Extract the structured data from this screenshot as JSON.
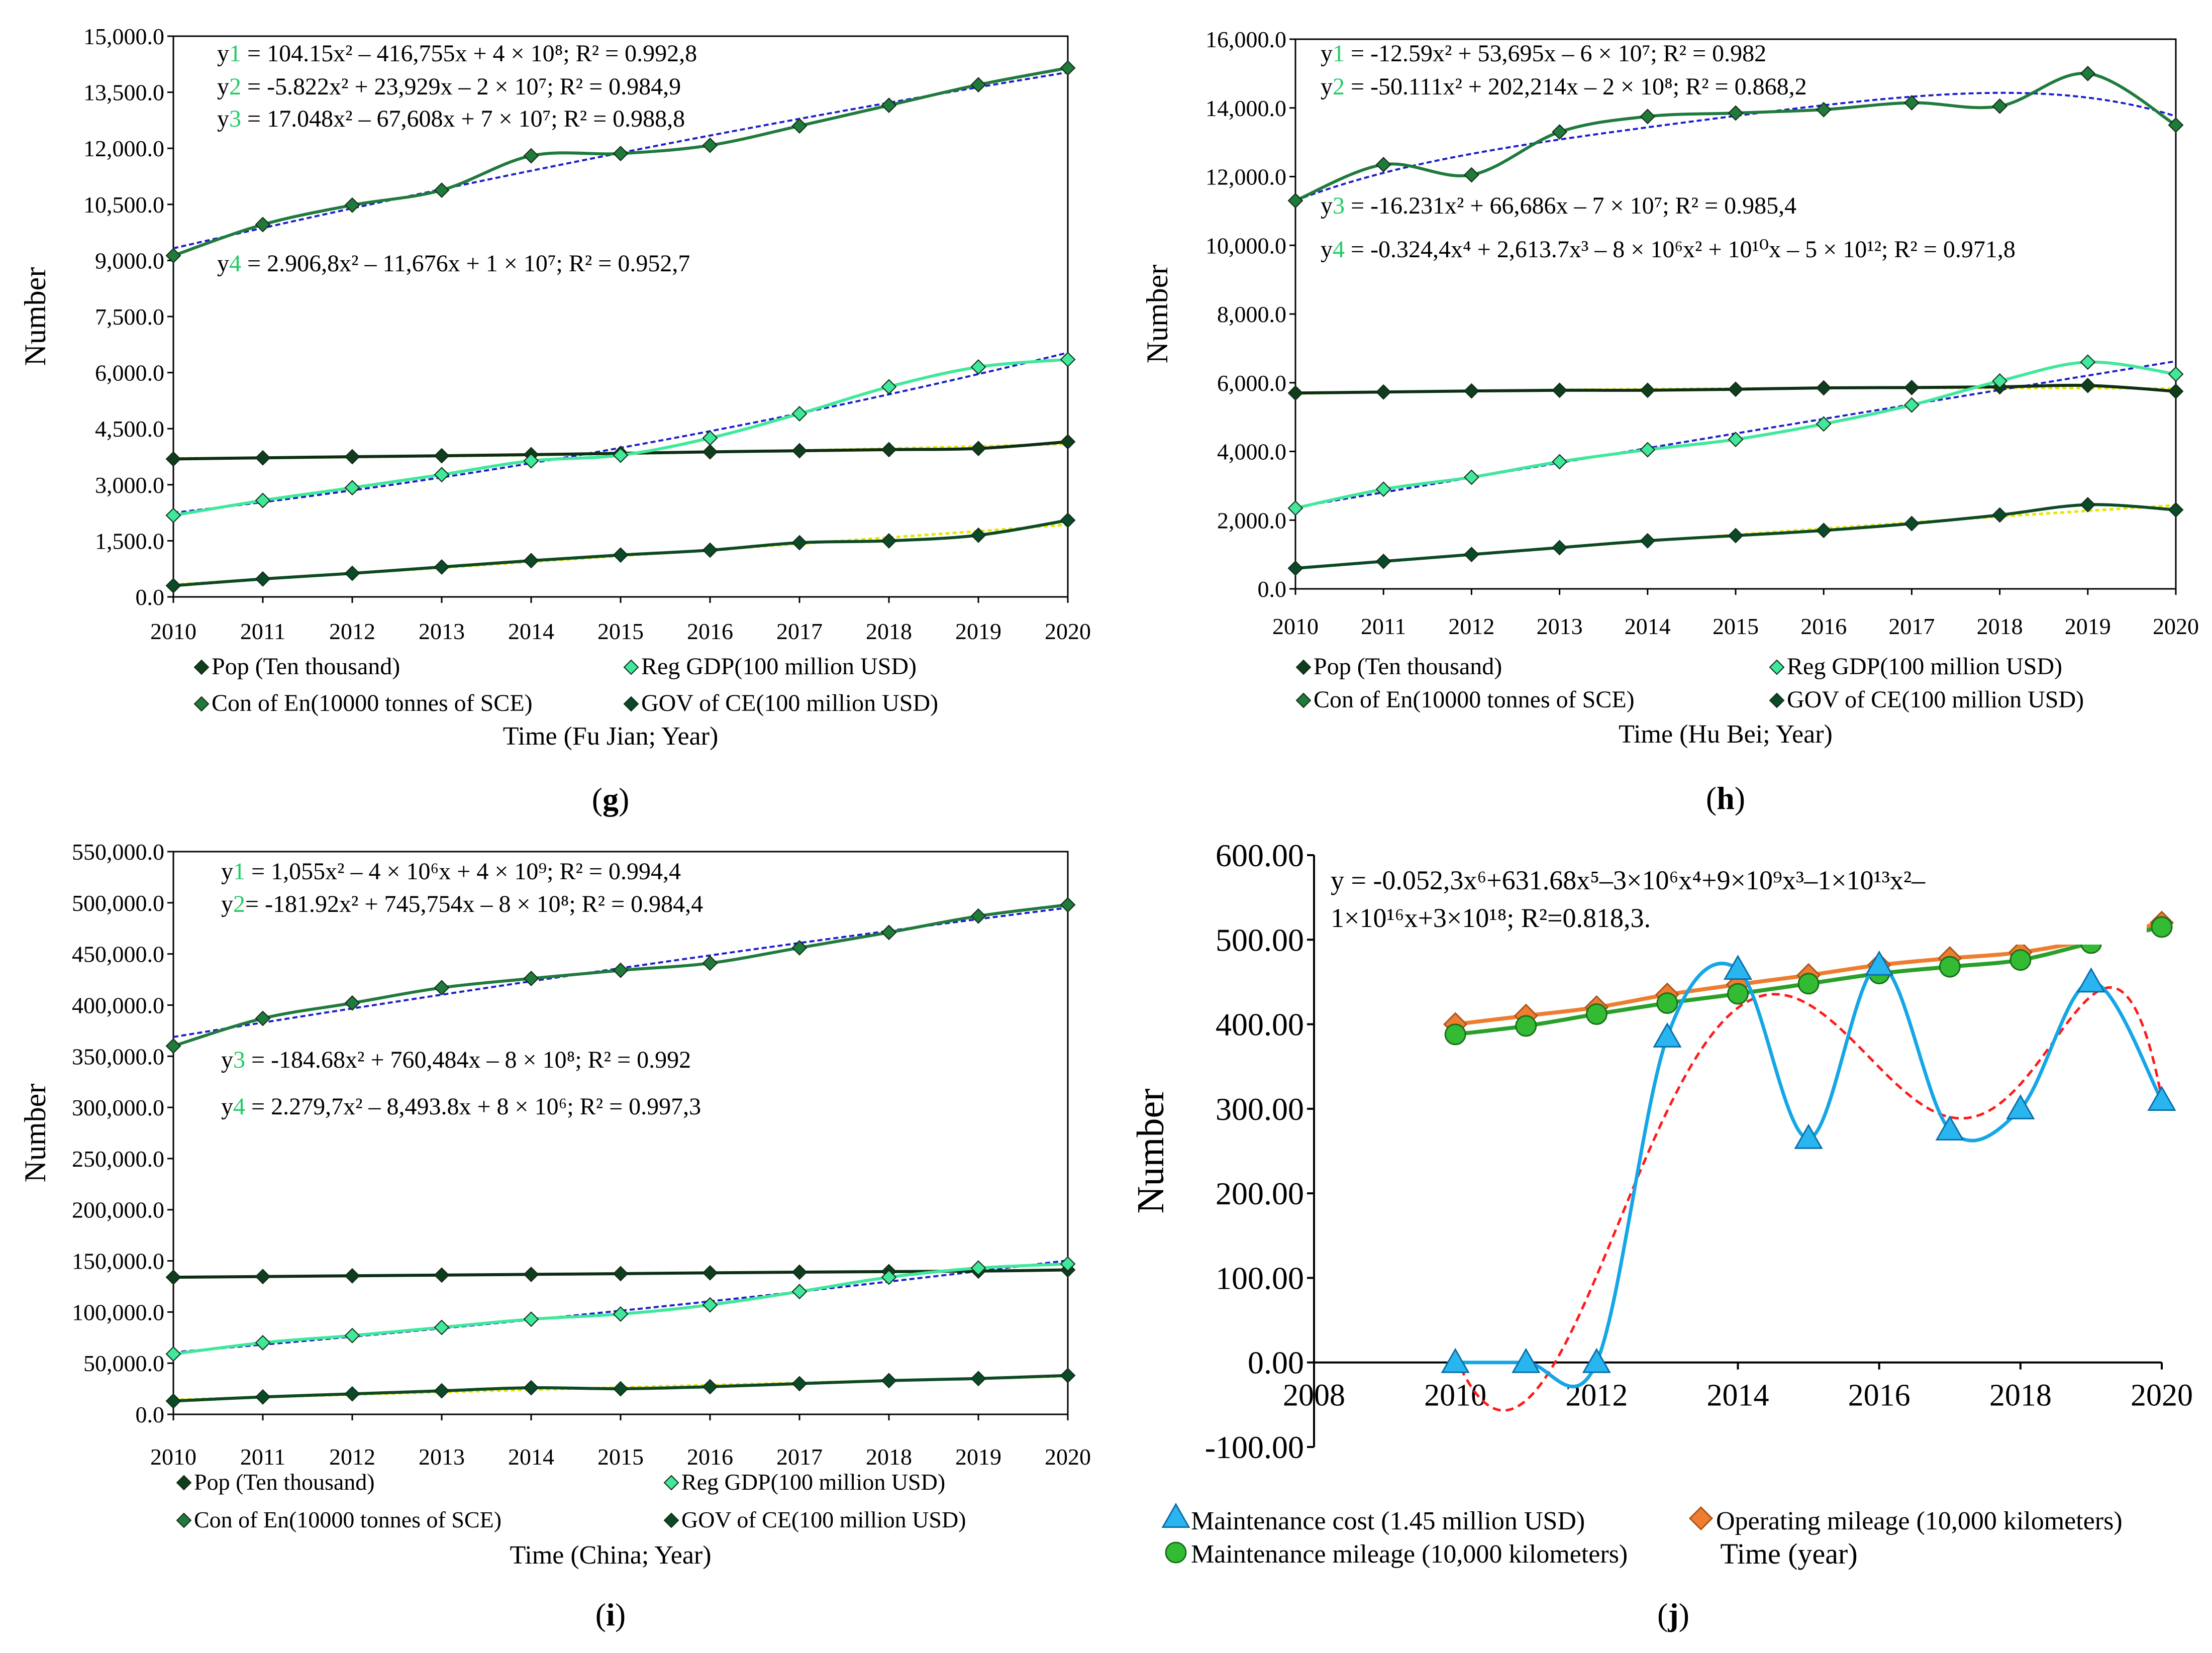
{
  "colors": {
    "pop": "#0f3d1e",
    "gdp": "#3fe89a",
    "en": "#1f7a3c",
    "gov": "#0b4a28",
    "fit_blue": "#1c1ccc",
    "fit_yellow": "#e6e600",
    "fit_red": "#ff1a1a",
    "cost": "#14a6e6",
    "mileage_op": "#ee7d30",
    "mileage_maint": "#2aa02a"
  },
  "chart_data": [
    {
      "id": "g",
      "type": "line",
      "panel_label": "g",
      "ylabel": "Number",
      "xlabel": "Time (Fu Jian; Year)",
      "ylim": [
        0,
        15000
      ],
      "yticks": [
        "0.0",
        "1,500.0",
        "3,000.0",
        "4,500.0",
        "6,000.0",
        "7,500.0",
        "9,000.0",
        "10,500.0",
        "12,000.0",
        "13,500.0",
        "15,000.0"
      ],
      "x": [
        "2010",
        "2011",
        "2012",
        "2013",
        "2014",
        "2015",
        "2016",
        "2017",
        "2018",
        "2019",
        "2020"
      ],
      "series": [
        {
          "key": "pop",
          "name": "Pop (Ten thousand)",
          "values": [
            3690,
            3720,
            3750,
            3775,
            3805,
            3840,
            3880,
            3910,
            3940,
            3970,
            4150
          ]
        },
        {
          "key": "gdp",
          "name": "Reg GDP(100 million USD)",
          "values": [
            2180,
            2580,
            2920,
            3270,
            3640,
            3790,
            4250,
            4900,
            5620,
            6150,
            6350
          ]
        },
        {
          "key": "en",
          "name": "Con of En(10000 tonnes of SCE)",
          "values": [
            9130,
            9960,
            10480,
            10880,
            11800,
            11860,
            12080,
            12600,
            13150,
            13700,
            14150
          ]
        },
        {
          "key": "gov",
          "name": "GOV of CE(100 million USD)",
          "values": [
            300,
            480,
            630,
            800,
            970,
            1120,
            1250,
            1450,
            1500,
            1650,
            2050
          ]
        }
      ],
      "equations": [
        {
          "prefix": "y",
          "idx": "1",
          "body": " = 104.15x² – 416,755x + 4 × 10⁸; R² = 0.992,8"
        },
        {
          "prefix": "y",
          "idx": "2",
          "body": " = -5.822x² + 23,929x – 2 × 10⁷; R² = 0.984,9"
        },
        {
          "prefix": "y",
          "idx": "3",
          "body": " = 17.048x² – 67,608x + 7 × 10⁷; R² = 0.988,8"
        },
        {
          "prefix": "y",
          "idx": "4",
          "body": " = 2.906,8x² – 11,676x + 1 × 10⁷; R² = 0.952,7"
        }
      ]
    },
    {
      "id": "h",
      "type": "line",
      "panel_label": "h",
      "ylabel": "Number",
      "xlabel": "Time (Hu Bei; Year)",
      "ylim": [
        0,
        16000
      ],
      "yticks": [
        "0.0",
        "2,000.0",
        "4,000.0",
        "6,000.0",
        "8,000.0",
        "10,000.0",
        "12,000.0",
        "14,000.0",
        "16,000.0"
      ],
      "x": [
        "2010",
        "2011",
        "2012",
        "2013",
        "2014",
        "2015",
        "2016",
        "2017",
        "2018",
        "2019",
        "2020"
      ],
      "series": [
        {
          "key": "pop",
          "name": "Pop (Ten thousand)",
          "values": [
            5700,
            5730,
            5760,
            5780,
            5780,
            5810,
            5850,
            5860,
            5880,
            5920,
            5750
          ]
        },
        {
          "key": "gdp",
          "name": "Reg GDP(100 million USD)",
          "values": [
            2350,
            2900,
            3250,
            3700,
            4050,
            4350,
            4800,
            5350,
            6050,
            6600,
            6250
          ]
        },
        {
          "key": "en",
          "name": "Con of En(10000 tonnes of SCE)",
          "values": [
            11300,
            12350,
            12050,
            13300,
            13750,
            13850,
            13950,
            14150,
            14050,
            15000,
            13500
          ]
        },
        {
          "key": "gov",
          "name": "GOV of CE(100 million USD)",
          "values": [
            600,
            800,
            1000,
            1200,
            1400,
            1550,
            1700,
            1900,
            2150,
            2450,
            2300
          ]
        }
      ],
      "equations": [
        {
          "prefix": "y",
          "idx": "1",
          "body": " = -12.59x² + 53,695x – 6 × 10⁷; R² = 0.982"
        },
        {
          "prefix": "y",
          "idx": "2",
          "body": " = -50.111x² + 202,214x – 2 × 10⁸; R² = 0.868,2"
        },
        {
          "prefix": "y",
          "idx": "3",
          "body": " = -16.231x² + 66,686x – 7 × 10⁷; R² = 0.985,4"
        },
        {
          "prefix": "y",
          "idx": "4",
          "body": " = -0.324,4x⁴ + 2,613.7x³ – 8 × 10⁶x² + 10¹⁰x – 5 × 10¹²; R² = 0.971,8"
        }
      ]
    },
    {
      "id": "i",
      "type": "line",
      "panel_label": "i",
      "ylabel": "Number",
      "xlabel": "Time (China; Year)",
      "ylim": [
        0,
        550000
      ],
      "yticks": [
        "0.0",
        "50,000.0",
        "100,000.0",
        "150,000.0",
        "200,000.0",
        "250,000.0",
        "300,000.0",
        "350,000.0",
        "400,000.0",
        "450,000.0",
        "500,000.0",
        "550,000.0"
      ],
      "x": [
        "2010",
        "2011",
        "2012",
        "2013",
        "2014",
        "2015",
        "2016",
        "2017",
        "2018",
        "2019",
        "2020"
      ],
      "series": [
        {
          "key": "pop",
          "name": "Pop (Ten thousand)",
          "values": [
            134000,
            134700,
            135400,
            136100,
            136800,
            137500,
            138300,
            139000,
            139500,
            140000,
            141200
          ]
        },
        {
          "key": "gdp",
          "name": "Reg GDP(100 million USD)",
          "values": [
            59000,
            70000,
            77000,
            85000,
            93000,
            98000,
            107000,
            120000,
            134000,
            143000,
            147000
          ]
        },
        {
          "key": "en",
          "name": "Con of En(10000 tonnes of SCE)",
          "values": [
            360000,
            387000,
            402000,
            417000,
            426000,
            434000,
            441000,
            456000,
            471000,
            487000,
            498000
          ]
        },
        {
          "key": "gov",
          "name": "GOV of CE(100 million USD)",
          "values": [
            13000,
            17000,
            20000,
            23000,
            26000,
            25000,
            27000,
            30000,
            33000,
            35000,
            38000
          ]
        }
      ],
      "equations": [
        {
          "prefix": "y",
          "idx": "1",
          "body": " = 1,055x² – 4 × 10⁶x + 4 × 10⁹; R² = 0.994,4"
        },
        {
          "prefix": "y",
          "idx": "2",
          "body": "= -181.92x² + 745,754x – 8 × 10⁸; R² = 0.984,4"
        },
        {
          "prefix": "y",
          "idx": "3",
          "body": " = -184.68x² + 760,484x – 8 × 10⁸; R² = 0.992"
        },
        {
          "prefix": "y",
          "idx": "4",
          "body": " = 2.279,7x² – 8,493.8x + 8 × 10⁶; R² = 0.997,3"
        }
      ]
    },
    {
      "id": "j",
      "type": "line",
      "panel_label": "j",
      "ylabel": "Number",
      "xlabel": "Time (year)",
      "ylim": [
        -100,
        600
      ],
      "xlim": [
        2008,
        2020
      ],
      "yticks": [
        "-100.00",
        "0.00",
        "100.00",
        "200.00",
        "300.00",
        "400.00",
        "500.00",
        "600.00"
      ],
      "xticks": [
        "2008",
        "2010",
        "2012",
        "2014",
        "2016",
        "2018",
        "2020"
      ],
      "x": [
        2010,
        2011,
        2012,
        2013,
        2014,
        2015,
        2016,
        2017,
        2018,
        2019,
        2020
      ],
      "series": [
        {
          "key": "cost",
          "name": "Maintenance cost (1.45 million USD)",
          "values": [
            0,
            0,
            0,
            385,
            465,
            265,
            470,
            275,
            300,
            450,
            310
          ]
        },
        {
          "key": "mileage_op",
          "name": "Operating mileage (10,000 kilometers)",
          "values": [
            400,
            410,
            420,
            435,
            447,
            458,
            470,
            478,
            485,
            500,
            520
          ]
        },
        {
          "key": "mileage_maint",
          "name": "Maintenance mileage (10,000 kilometers)",
          "values": [
            388,
            398,
            412,
            425,
            436,
            448,
            460,
            468,
            476,
            496,
            515
          ]
        }
      ],
      "equation_lines": [
        "y = -0.052,3x⁶+631.68x⁵–3×10⁶x⁴+9×10⁹x³–1×10¹³x²–",
        "1×10¹⁶x+3×10¹⁸;  R²=0.818,3."
      ]
    }
  ]
}
